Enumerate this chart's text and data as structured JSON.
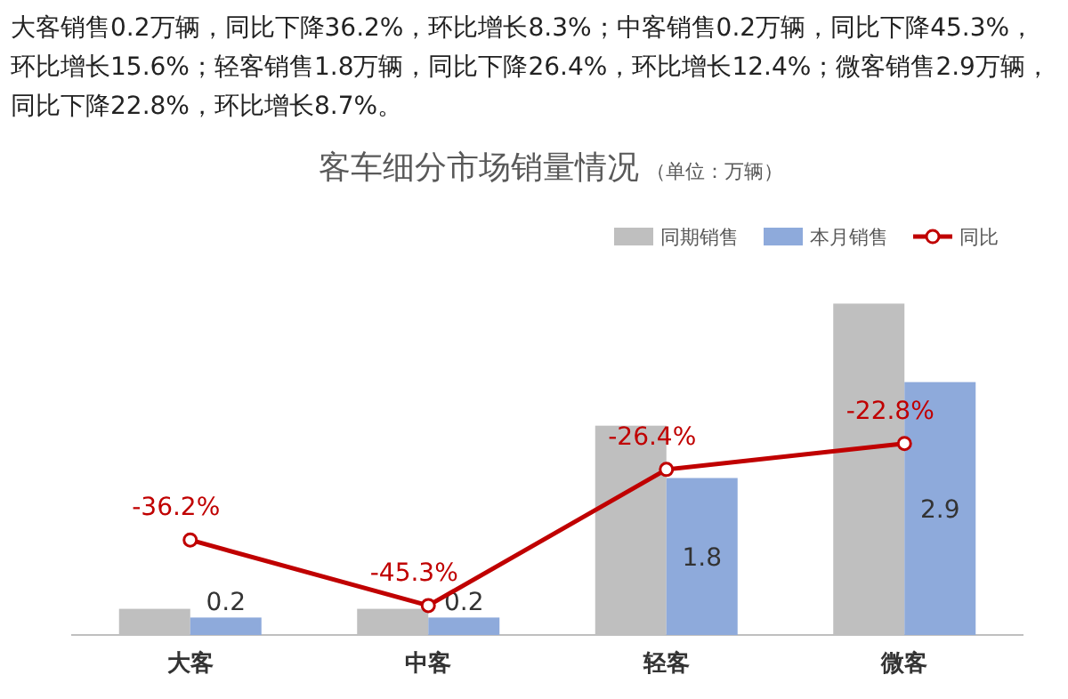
{
  "chart_data": {
    "type": "bar",
    "title": "客车细分市场销量情况",
    "subtitle": "（单位：万辆）",
    "annotations": [
      "大客销售0.2万辆，同比下降36.2%，环比增长8.3%；中客销售0.2万辆，同比下降45.3%，环比增长15.6%；轻客销售1.8万辆，同比下降26.4%，环比增长12.4%；微客销售2.9万辆，同比下降22.8%，环比增长8.7%。"
    ],
    "categories": [
      "大客",
      "中客",
      "轻客",
      "微客"
    ],
    "legend": "top right",
    "series": [
      {
        "name": "同期销售",
        "color": "#bfbfbf",
        "values": [
          0.3,
          0.3,
          2.4,
          3.8
        ]
      },
      {
        "name": "本月销售",
        "color": "#8eaadb",
        "values": [
          0.2,
          0.2,
          1.8,
          2.9
        ],
        "value_labels": [
          "0.2",
          "0.2",
          "1.8",
          "2.9"
        ]
      },
      {
        "name": "同比",
        "type": "line",
        "axis": "y2",
        "color": "#c00000",
        "marker": "circle",
        "values": [
          -36.2,
          -45.3,
          -26.4,
          -22.8
        ],
        "value_labels": [
          "-36.2%",
          "-45.3%",
          "-26.4%",
          "-22.8%"
        ]
      }
    ]
  }
}
